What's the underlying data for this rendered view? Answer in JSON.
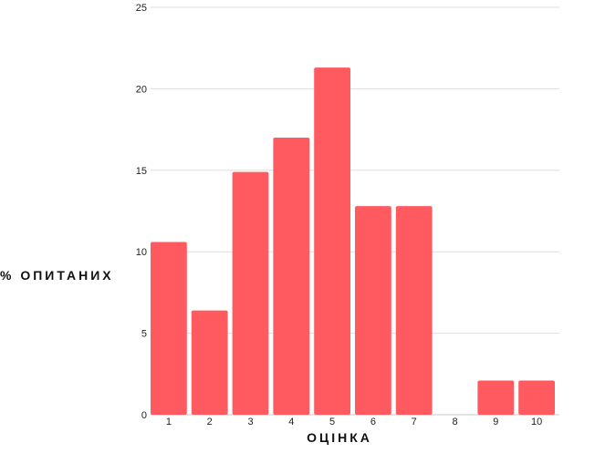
{
  "chart_data": {
    "type": "bar",
    "categories": [
      "1",
      "2",
      "3",
      "4",
      "5",
      "6",
      "7",
      "8",
      "9",
      "10"
    ],
    "values": [
      10.6,
      6.4,
      14.9,
      17.0,
      21.3,
      12.8,
      12.8,
      0,
      2.1,
      2.1
    ],
    "xlabel": "ОЦІНКА",
    "ylabel": "% ОПИТАНИХ",
    "ylim": [
      0,
      25
    ],
    "yticks": [
      0,
      5,
      10,
      15,
      20,
      25
    ],
    "grid": true,
    "bar_color": "#ff5a5f"
  }
}
